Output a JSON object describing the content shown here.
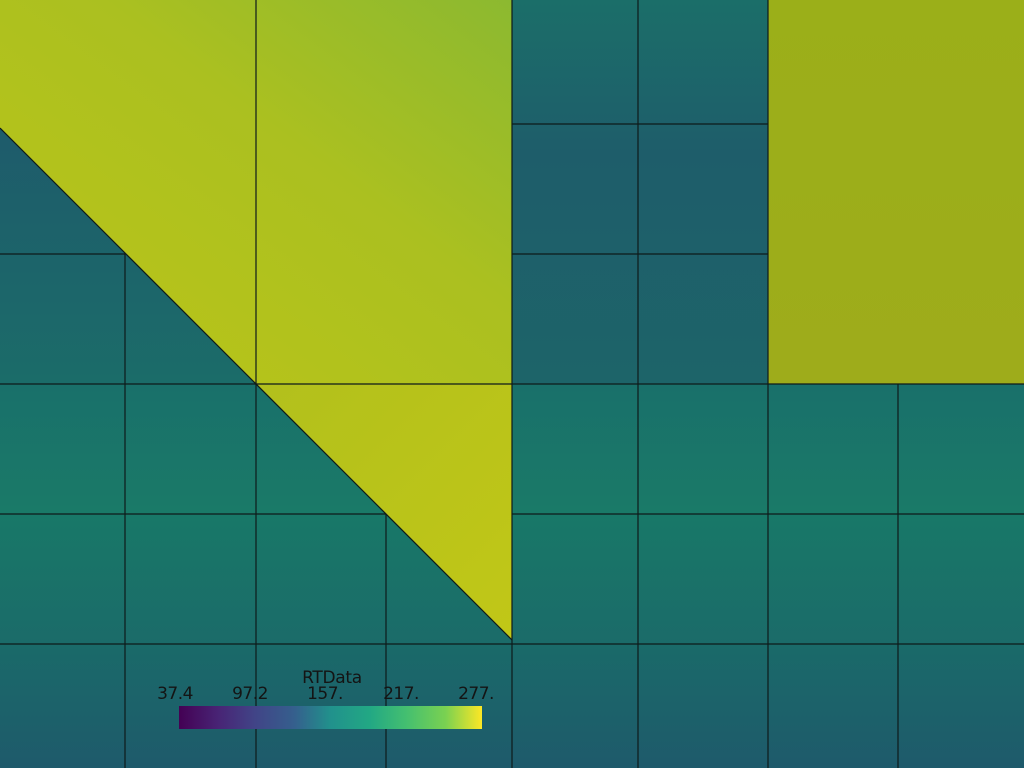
{
  "scalar_bar": {
    "title": "RTData",
    "labels": [
      "37.4",
      "97.2",
      "157.",
      "217.",
      "277."
    ],
    "colormap": "viridis",
    "range": [
      37.4,
      277
    ]
  },
  "colors": {
    "outline": "#0e1a1a",
    "yellow_main": "#b4c11a",
    "yellow_mid": "#a8be22",
    "yellow_green": "#8cb930",
    "olive": "#9bad19",
    "teal_top": "#1c5b6b",
    "teal_bottom": "#177566"
  }
}
